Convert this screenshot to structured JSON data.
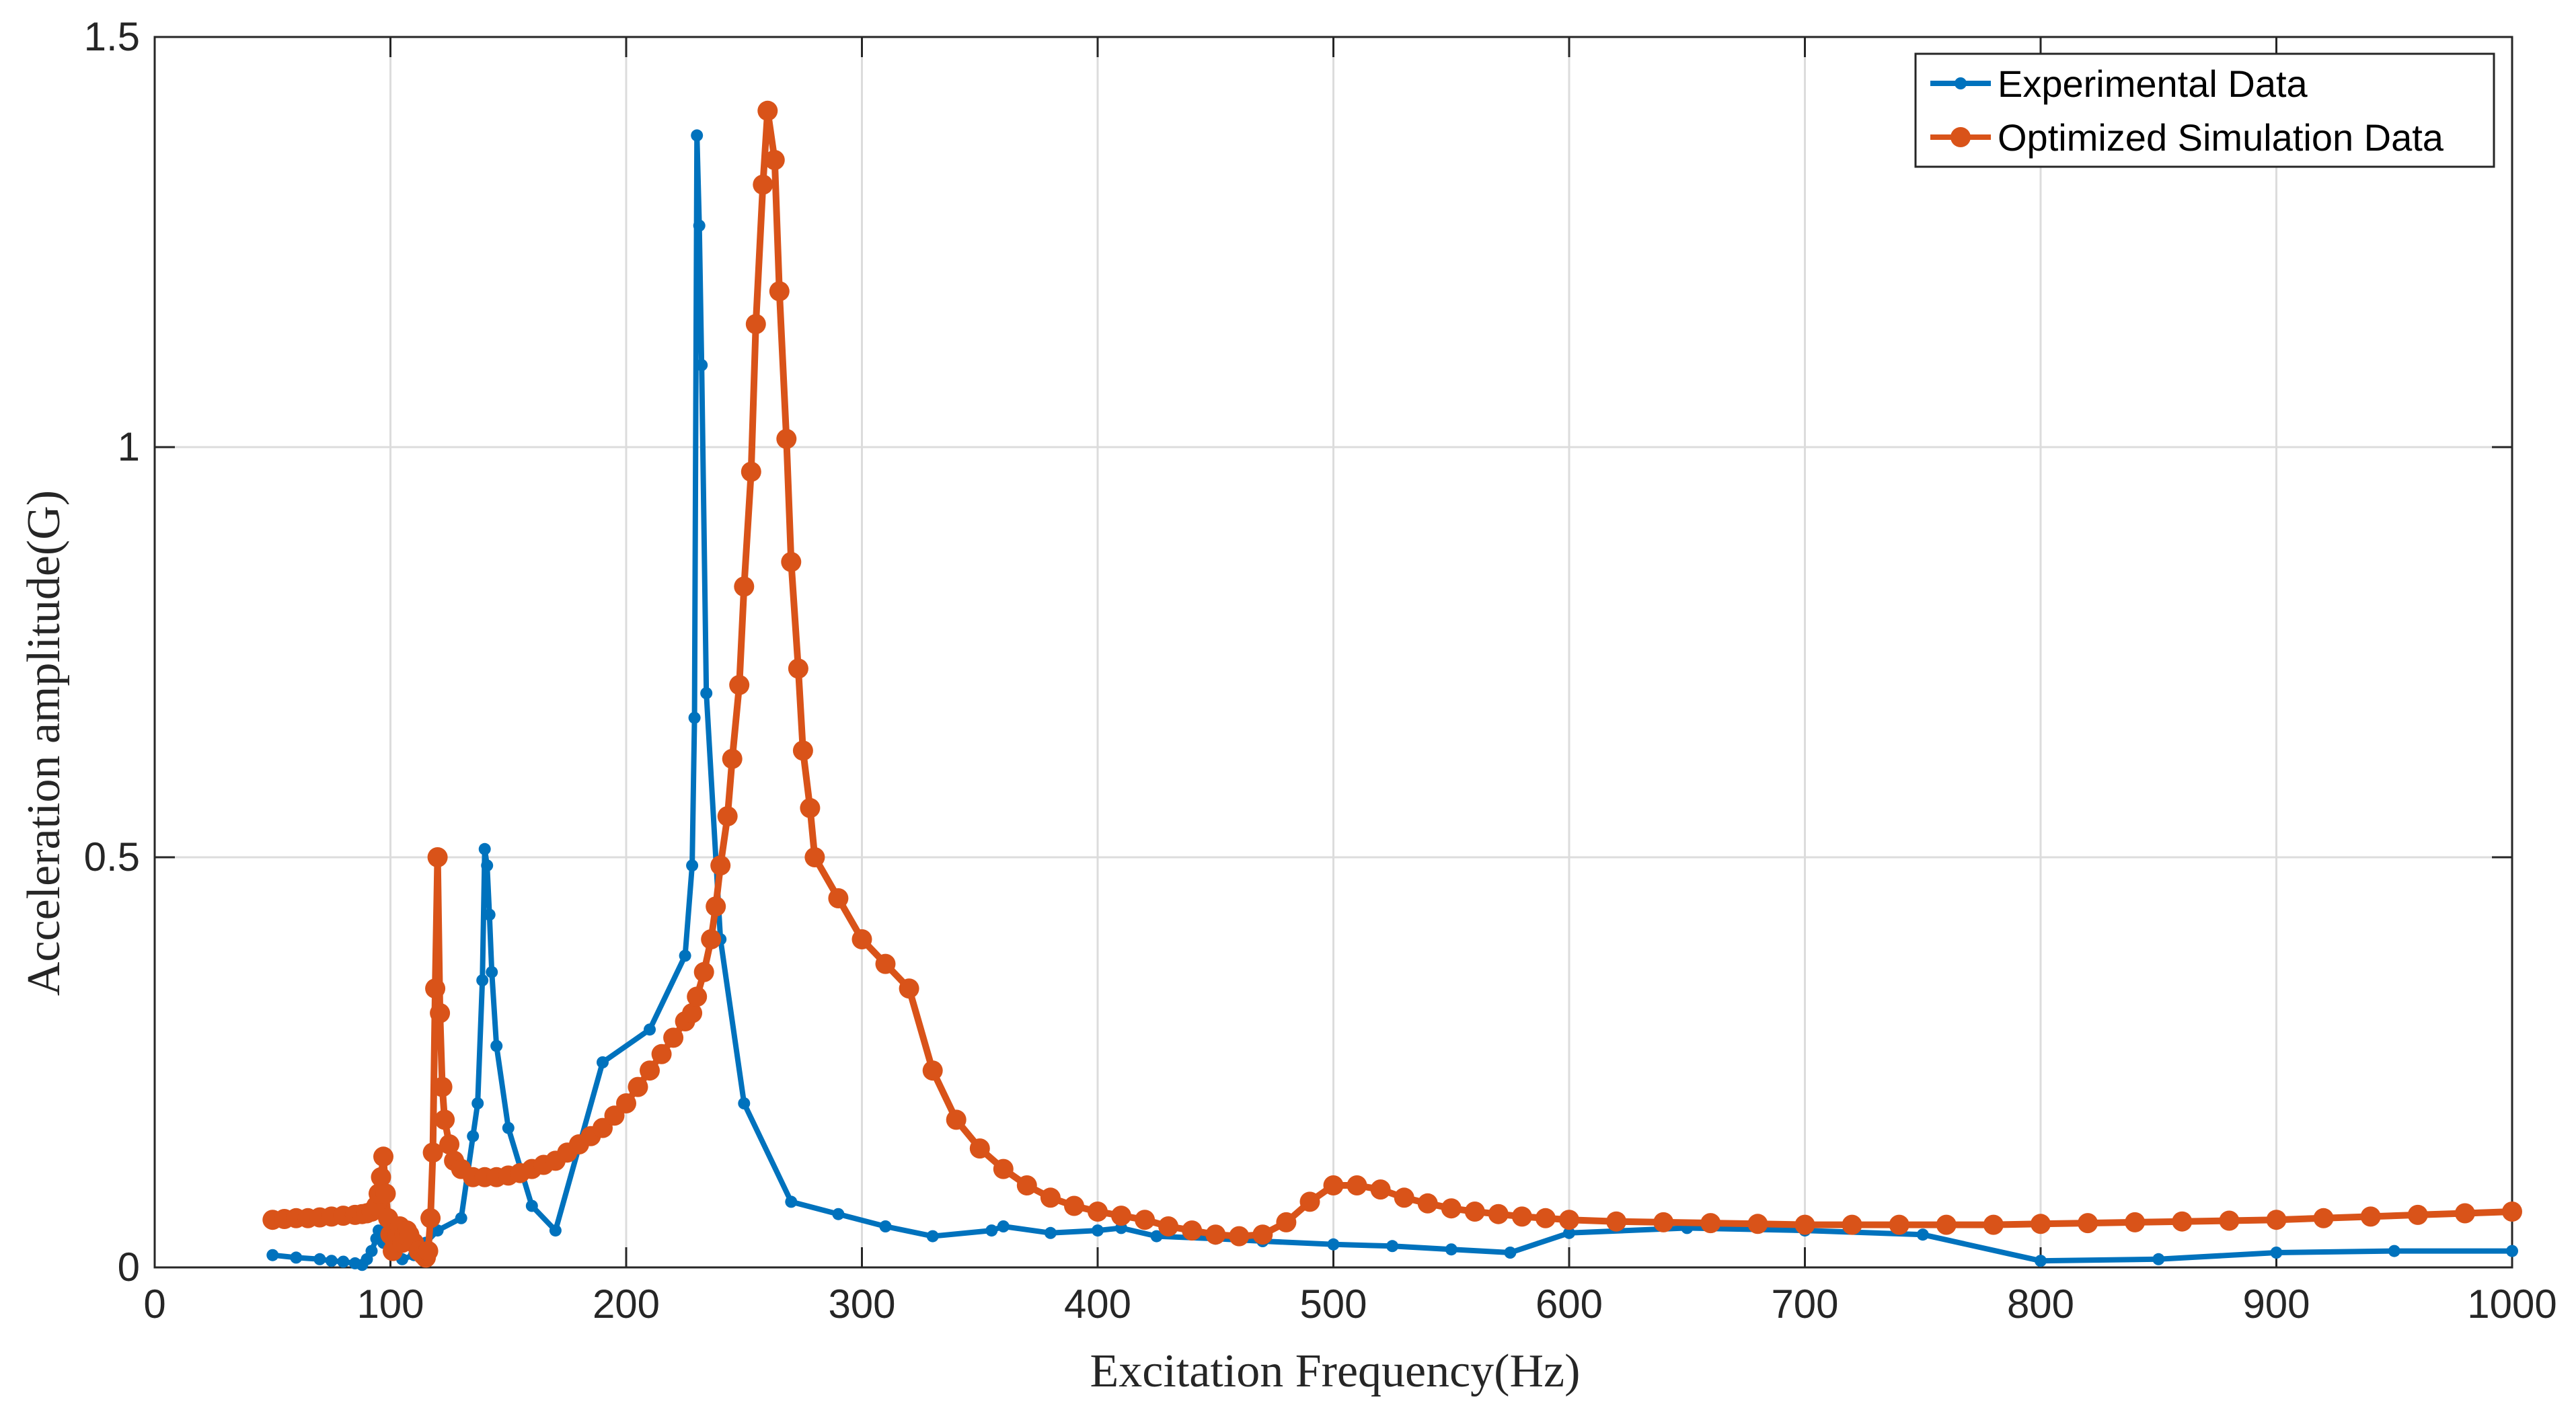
{
  "chart_data": {
    "type": "line",
    "title": "",
    "xlabel": "Excitation Frequency(Hz)",
    "ylabel": "Acceleration amplitude(G)",
    "xlim": [
      0,
      1000
    ],
    "ylim": [
      0,
      1.5
    ],
    "xticks": [
      0,
      100,
      200,
      300,
      400,
      500,
      600,
      700,
      800,
      900,
      1000
    ],
    "xtick_labels": [
      "0",
      "100",
      "200",
      "300",
      "400",
      "500",
      "600",
      "700",
      "800",
      "900",
      "1000"
    ],
    "yticks": [
      0,
      0.5,
      1,
      1.5
    ],
    "ytick_labels": [
      "0",
      "0.5",
      "1",
      "1.5"
    ],
    "grid": true,
    "legend_position": "top-right",
    "series": [
      {
        "name": "Experimental Data",
        "color": "#0072BD",
        "marker": "small-dot",
        "x": [
          50,
          60,
          70,
          75,
          80,
          85,
          88,
          90,
          92,
          94,
          95,
          97,
          100,
          105,
          110,
          115,
          120,
          130,
          135,
          137,
          139,
          140,
          141,
          142,
          143,
          145,
          150,
          160,
          170,
          190,
          210,
          225,
          228,
          229,
          230,
          231,
          232,
          234,
          240,
          250,
          270,
          290,
          310,
          330,
          355,
          360,
          380,
          400,
          410,
          425,
          450,
          470,
          500,
          525,
          550,
          575,
          600,
          650,
          700,
          750,
          800,
          850,
          900,
          950,
          1000
        ],
        "y": [
          0.015,
          0.012,
          0.01,
          0.008,
          0.007,
          0.005,
          0.003,
          0.01,
          0.02,
          0.035,
          0.045,
          0.03,
          0.02,
          0.01,
          0.015,
          0.03,
          0.045,
          0.06,
          0.16,
          0.2,
          0.35,
          0.51,
          0.49,
          0.43,
          0.36,
          0.27,
          0.17,
          0.075,
          0.045,
          0.25,
          0.29,
          0.38,
          0.49,
          0.67,
          1.38,
          1.27,
          1.1,
          0.7,
          0.4,
          0.2,
          0.08,
          0.065,
          0.05,
          0.038,
          0.045,
          0.05,
          0.042,
          0.045,
          0.048,
          0.038,
          0.035,
          0.032,
          0.028,
          0.026,
          0.022,
          0.018,
          0.042,
          0.048,
          0.045,
          0.04,
          0.008,
          0.01,
          0.018,
          0.02,
          0.02
        ]
      },
      {
        "name": "Optimized Simulation Data",
        "color": "#D95319",
        "marker": "large-dot",
        "x": [
          50,
          55,
          60,
          65,
          70,
          75,
          80,
          85,
          88,
          90,
          92,
          94,
          95,
          96,
          97,
          98,
          99,
          100,
          101,
          102,
          103,
          104,
          105,
          106,
          107,
          108,
          110,
          112,
          114,
          115,
          116,
          117,
          118,
          119,
          120,
          121,
          122,
          123,
          125,
          127,
          130,
          135,
          140,
          145,
          150,
          155,
          160,
          165,
          170,
          175,
          180,
          185,
          190,
          195,
          200,
          205,
          210,
          215,
          220,
          225,
          228,
          230,
          233,
          236,
          238,
          240,
          243,
          245,
          248,
          250,
          253,
          255,
          258,
          260,
          263,
          265,
          268,
          270,
          273,
          275,
          278,
          280,
          290,
          300,
          310,
          320,
          330,
          340,
          350,
          360,
          370,
          380,
          390,
          400,
          410,
          420,
          430,
          440,
          450,
          460,
          470,
          480,
          490,
          500,
          510,
          520,
          530,
          540,
          550,
          560,
          570,
          580,
          590,
          600,
          620,
          640,
          660,
          680,
          700,
          720,
          740,
          760,
          780,
          800,
          820,
          840,
          860,
          880,
          900,
          920,
          940,
          960,
          980,
          1000
        ],
        "y": [
          0.058,
          0.059,
          0.06,
          0.06,
          0.061,
          0.062,
          0.063,
          0.064,
          0.065,
          0.066,
          0.068,
          0.075,
          0.09,
          0.11,
          0.135,
          0.09,
          0.06,
          0.04,
          0.02,
          0.03,
          0.04,
          0.05,
          0.03,
          0.04,
          0.045,
          0.04,
          0.03,
          0.02,
          0.015,
          0.012,
          0.02,
          0.06,
          0.14,
          0.34,
          0.5,
          0.31,
          0.22,
          0.18,
          0.15,
          0.13,
          0.12,
          0.11,
          0.11,
          0.11,
          0.112,
          0.115,
          0.12,
          0.125,
          0.13,
          0.14,
          0.15,
          0.16,
          0.17,
          0.185,
          0.2,
          0.22,
          0.24,
          0.26,
          0.28,
          0.3,
          0.31,
          0.33,
          0.36,
          0.4,
          0.44,
          0.49,
          0.55,
          0.62,
          0.71,
          0.83,
          0.97,
          1.15,
          1.32,
          1.41,
          1.35,
          1.19,
          1.01,
          0.86,
          0.73,
          0.63,
          0.56,
          0.5,
          0.45,
          0.4,
          0.37,
          0.34,
          0.24,
          0.18,
          0.145,
          0.12,
          0.1,
          0.085,
          0.075,
          0.068,
          0.063,
          0.058,
          0.05,
          0.045,
          0.04,
          0.038,
          0.04,
          0.055,
          0.08,
          0.1,
          0.1,
          0.095,
          0.085,
          0.078,
          0.072,
          0.068,
          0.065,
          0.062,
          0.06,
          0.058,
          0.056,
          0.055,
          0.054,
          0.053,
          0.052,
          0.052,
          0.052,
          0.052,
          0.052,
          0.053,
          0.054,
          0.055,
          0.056,
          0.057,
          0.058,
          0.06,
          0.062,
          0.064,
          0.066,
          0.068
        ]
      }
    ]
  }
}
